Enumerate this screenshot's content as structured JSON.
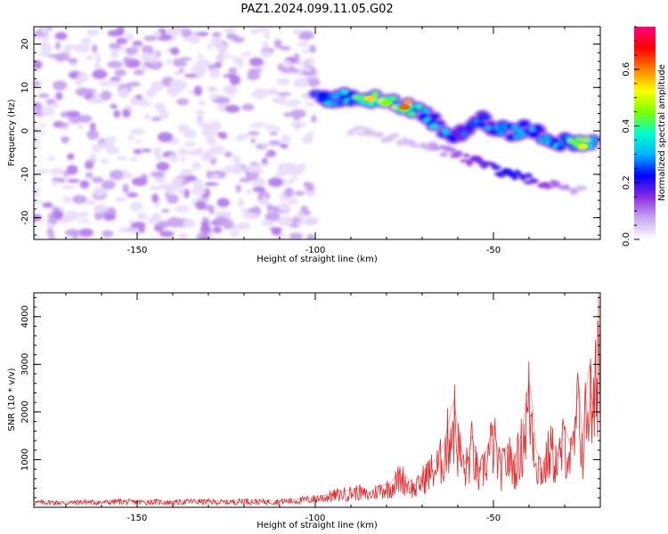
{
  "title": "PAZ1.2024.099.11.05.G02",
  "chart_data": [
    {
      "type": "heatmap",
      "xlabel": "Height of straight line (km)",
      "ylabel": "Frequency (Hz)",
      "xlim": [
        -179,
        -20
      ],
      "ylim": [
        -25,
        24
      ],
      "xticks": [
        -150,
        -100,
        -50
      ],
      "yticks": [
        -20,
        -10,
        0,
        10,
        20
      ],
      "colorbar": {
        "label": "Normalized spectral amplitude",
        "range": [
          0,
          0.75
        ],
        "ticks": [
          0.0,
          0.2,
          0.4,
          0.6
        ],
        "tick_labels": [
          "0.0",
          "0.2",
          "0.4",
          "0.6"
        ],
        "colors": [
          "#ffffff",
          "#c8a8f0",
          "#8a2be2",
          "#0000ff",
          "#00b4ff",
          "#00ffc8",
          "#7fff00",
          "#ffff00",
          "#ff8000",
          "#ff0000",
          "#ff007f"
        ]
      },
      "noise_region": {
        "x": [
          -179,
          -100
        ],
        "y": [
          -25,
          24
        ],
        "level": 0.08
      },
      "signal_ridge": [
        {
          "x": -100,
          "y": 7.0,
          "amp": 0.28
        },
        {
          "x": -95,
          "y": 7.5,
          "amp": 0.32
        },
        {
          "x": -90,
          "y": 8.0,
          "amp": 0.38
        },
        {
          "x": -85,
          "y": 7.5,
          "amp": 0.55
        },
        {
          "x": -80,
          "y": 6.5,
          "amp": 0.45
        },
        {
          "x": -75,
          "y": 5.5,
          "amp": 0.62
        },
        {
          "x": -72,
          "y": 5.0,
          "amp": 0.4
        },
        {
          "x": -68,
          "y": 3.0,
          "amp": 0.35
        },
        {
          "x": -64,
          "y": 0.5,
          "amp": 0.32
        },
        {
          "x": -60,
          "y": -1.5,
          "amp": 0.28
        },
        {
          "x": -55,
          "y": 3.0,
          "amp": 0.25
        },
        {
          "x": -50,
          "y": 1.0,
          "amp": 0.3
        },
        {
          "x": -45,
          "y": -0.5,
          "amp": 0.28
        },
        {
          "x": -40,
          "y": 0.5,
          "amp": 0.32
        },
        {
          "x": -35,
          "y": -1.5,
          "amp": 0.3
        },
        {
          "x": -30,
          "y": -2.5,
          "amp": 0.35
        },
        {
          "x": -25,
          "y": -3.5,
          "amp": 0.5
        },
        {
          "x": -21,
          "y": -2.0,
          "amp": 0.4
        }
      ],
      "faint_branch": [
        {
          "x": -90,
          "y": 0.0,
          "amp": 0.05
        },
        {
          "x": -70,
          "y": -3.0,
          "amp": 0.06
        },
        {
          "x": -45,
          "y": -10.0,
          "amp": 0.22
        },
        {
          "x": -25,
          "y": -14.0,
          "amp": 0.06
        }
      ]
    },
    {
      "type": "line",
      "xlabel": "Height of straight line (km)",
      "ylabel": "SNR (10 * v/v)",
      "xlim": [
        -179,
        -20
      ],
      "ylim": [
        0,
        4500
      ],
      "xticks": [
        -150,
        -100,
        -50
      ],
      "yticks": [
        1000,
        2000,
        3000,
        4000
      ],
      "line_color": "#e8282a",
      "series": [
        {
          "x": [
            -179,
            -175,
            -170,
            -165,
            -160,
            -155,
            -150,
            -145,
            -140,
            -135,
            -130,
            -125,
            -120,
            -115,
            -110,
            -105,
            -100,
            -97,
            -94,
            -91,
            -88,
            -85,
            -82,
            -79,
            -76,
            -74,
            -72,
            -70,
            -68,
            -66,
            -64,
            -62,
            -61,
            -60,
            -58,
            -56,
            -54,
            -52,
            -50,
            -48,
            -46,
            -44,
            -42,
            -40,
            -39,
            -38,
            -36,
            -34,
            -32,
            -30,
            -28,
            -26,
            -25,
            -24,
            -23,
            -22,
            -21,
            -20.5,
            -20
          ],
          "values": [
            120,
            130,
            110,
            140,
            120,
            150,
            130,
            140,
            120,
            150,
            140,
            130,
            160,
            140,
            150,
            170,
            220,
            260,
            320,
            350,
            400,
            300,
            450,
            500,
            780,
            600,
            450,
            700,
            900,
            1000,
            1300,
            2000,
            2250,
            1600,
            900,
            1500,
            700,
            1200,
            1700,
            900,
            1300,
            1000,
            1600,
            2650,
            2100,
            1200,
            900,
            1500,
            1100,
            1700,
            1200,
            2600,
            1400,
            2400,
            3000,
            2000,
            3500,
            4500,
            2800
          ]
        }
      ]
    }
  ]
}
